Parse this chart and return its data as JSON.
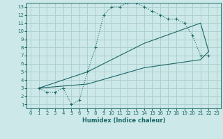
{
  "xlabel": "Humidex (Indice chaleur)",
  "xlim": [
    -0.5,
    23.5
  ],
  "ylim": [
    0.5,
    13.5
  ],
  "xticks": [
    0,
    1,
    2,
    3,
    4,
    5,
    6,
    7,
    8,
    9,
    10,
    11,
    12,
    13,
    14,
    15,
    16,
    17,
    18,
    19,
    20,
    21,
    22,
    23
  ],
  "yticks": [
    1,
    2,
    3,
    4,
    5,
    6,
    7,
    8,
    9,
    10,
    11,
    12,
    13
  ],
  "bg_color": "#cce8e8",
  "grid_color": "#aacccc",
  "line_color": "#1a6666",
  "line1_x": [
    1,
    2,
    3,
    4,
    5,
    6,
    7,
    8,
    9,
    10,
    11,
    12,
    13,
    14,
    15,
    16,
    17,
    18,
    19,
    20,
    21,
    22
  ],
  "line1_y": [
    3,
    2.5,
    2.5,
    3,
    1,
    1.5,
    5,
    8,
    12,
    13,
    13,
    13.5,
    13.5,
    13,
    12.5,
    12,
    11.5,
    11.5,
    11,
    9.5,
    7,
    7
  ],
  "line2_x": [
    1,
    7,
    14,
    21,
    22
  ],
  "line2_y": [
    3,
    5,
    8.5,
    11,
    7.5
  ],
  "line3_x": [
    1,
    7,
    14,
    21,
    22
  ],
  "line3_y": [
    3,
    3.5,
    5.5,
    6.5,
    7.5
  ]
}
